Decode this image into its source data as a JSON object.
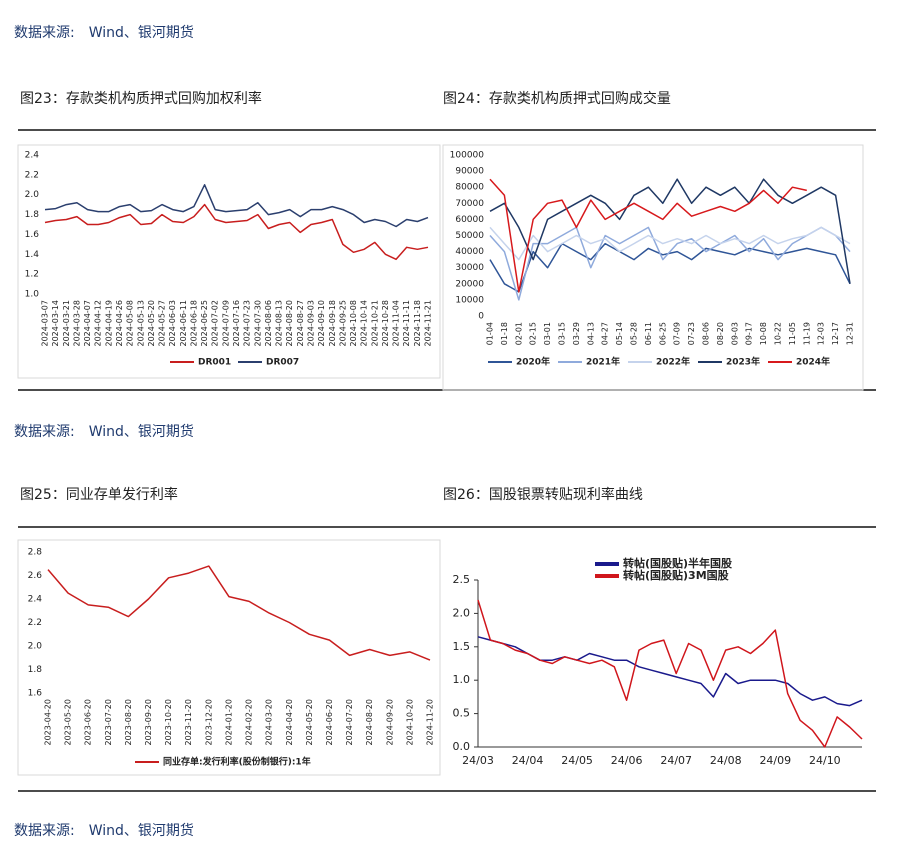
{
  "sources": [
    "数据来源:　Wind、银河期货",
    "数据来源:　Wind、银河期货",
    "数据来源:　Wind、银河期货"
  ],
  "chart_data": [
    {
      "type": "line",
      "title": "图23：存款类机构质押式回购加权利率",
      "categories": [
        "2024-03-07",
        "2024-03-14",
        "2024-03-21",
        "2024-03-28",
        "2024-04-07",
        "2024-04-12",
        "2024-04-19",
        "2024-04-26",
        "2024-05-08",
        "2024-05-13",
        "2024-05-20",
        "2024-05-27",
        "2024-06-03",
        "2024-06-11",
        "2024-06-18",
        "2024-06-25",
        "2024-07-02",
        "2024-07-09",
        "2024-07-16",
        "2024-07-23",
        "2024-07-30",
        "2024-08-06",
        "2024-08-13",
        "2024-08-20",
        "2024-08-27",
        "2024-09-03",
        "2024-09-10",
        "2024-09-18",
        "2024-09-25",
        "2024-10-08",
        "2024-10-14",
        "2024-10-21",
        "2024-10-28",
        "2024-11-04",
        "2024-11-11",
        "2024-11-18",
        "2024-11-21"
      ],
      "series": [
        {
          "name": "DR001",
          "color": "#c81e1e",
          "values": [
            1.72,
            1.74,
            1.75,
            1.78,
            1.7,
            1.7,
            1.72,
            1.77,
            1.8,
            1.7,
            1.71,
            1.8,
            1.73,
            1.72,
            1.78,
            1.9,
            1.75,
            1.72,
            1.73,
            1.74,
            1.8,
            1.66,
            1.7,
            1.72,
            1.62,
            1.7,
            1.72,
            1.75,
            1.5,
            1.42,
            1.45,
            1.52,
            1.4,
            1.35,
            1.47,
            1.45,
            1.47
          ]
        },
        {
          "name": "DR007",
          "color": "#2b3f6e",
          "values": [
            1.85,
            1.86,
            1.9,
            1.92,
            1.85,
            1.83,
            1.83,
            1.88,
            1.9,
            1.83,
            1.84,
            1.9,
            1.85,
            1.83,
            1.88,
            2.1,
            1.85,
            1.83,
            1.84,
            1.85,
            1.92,
            1.8,
            1.82,
            1.85,
            1.78,
            1.85,
            1.85,
            1.88,
            1.85,
            1.8,
            1.72,
            1.75,
            1.73,
            1.68,
            1.75,
            1.73,
            1.77
          ]
        }
      ],
      "ylim": [
        1.0,
        2.4
      ],
      "yticks": [
        {
          "value": 1,
          "label": "1.0"
        },
        1.2,
        1.4,
        1.6,
        1.8,
        {
          "value": 2,
          "label": "2.0"
        },
        2.2,
        2.4
      ],
      "legend": "bottom"
    },
    {
      "type": "line",
      "title": "图24：存款类机构质押式回购成交量",
      "categories": [
        "01-04",
        "01-18",
        "02-01",
        "02-15",
        "03-01",
        "03-15",
        "03-29",
        "04-13",
        "04-27",
        "05-14",
        "05-28",
        "06-11",
        "06-25",
        "07-09",
        "07-23",
        "08-06",
        "08-20",
        "09-03",
        "09-17",
        "10-08",
        "10-22",
        "11-05",
        "11-19",
        "12-03",
        "12-17",
        "12-31"
      ],
      "series": [
        {
          "name": "2020年",
          "color": "#2f5597",
          "values": [
            35000,
            20000,
            15000,
            40000,
            30000,
            45000,
            40000,
            35000,
            45000,
            40000,
            35000,
            42000,
            38000,
            40000,
            35000,
            42000,
            40000,
            38000,
            42000,
            40000,
            38000,
            40000,
            42000,
            40000,
            38000,
            20000
          ]
        },
        {
          "name": "2021年",
          "color": "#8faadc",
          "values": [
            50000,
            40000,
            10000,
            45000,
            45000,
            50000,
            55000,
            30000,
            50000,
            45000,
            50000,
            55000,
            35000,
            45000,
            48000,
            40000,
            45000,
            50000,
            40000,
            48000,
            35000,
            45000,
            50000,
            55000,
            50000,
            40000
          ]
        },
        {
          "name": "2022年",
          "color": "#c5d3ec",
          "values": [
            55000,
            45000,
            35000,
            50000,
            40000,
            45000,
            50000,
            45000,
            48000,
            40000,
            45000,
            50000,
            45000,
            48000,
            45000,
            50000,
            45000,
            48000,
            45000,
            50000,
            45000,
            48000,
            50000,
            55000,
            50000,
            45000
          ]
        },
        {
          "name": "2023年",
          "color": "#1f3864",
          "values": [
            65000,
            70000,
            55000,
            35000,
            60000,
            65000,
            70000,
            75000,
            70000,
            60000,
            75000,
            80000,
            70000,
            85000,
            70000,
            80000,
            75000,
            80000,
            70000,
            85000,
            75000,
            70000,
            75000,
            80000,
            75000,
            20000
          ]
        },
        {
          "name": "2024年",
          "color": "#d7191c",
          "values": [
            85000,
            75000,
            15000,
            60000,
            70000,
            72000,
            55000,
            72000,
            60000,
            65000,
            70000,
            65000,
            60000,
            70000,
            62000,
            65000,
            68000,
            65000,
            70000,
            78000,
            70000,
            80000,
            78000,
            null,
            null,
            null
          ]
        }
      ],
      "ylim": [
        0,
        100000
      ],
      "yticks": [
        0,
        10000,
        20000,
        30000,
        40000,
        50000,
        60000,
        70000,
        80000,
        90000,
        100000
      ],
      "legend": "bottom"
    },
    {
      "type": "line",
      "title": "图25：同业存单发行利率",
      "categories": [
        "2023-04-20",
        "2023-05-20",
        "2023-06-20",
        "2023-07-20",
        "2023-08-20",
        "2023-09-20",
        "2023-10-20",
        "2023-11-20",
        "2023-12-20",
        "2024-01-20",
        "2024-02-20",
        "2024-03-20",
        "2024-04-20",
        "2024-05-20",
        "2024-06-20",
        "2024-07-20",
        "2024-08-20",
        "2024-09-20",
        "2024-10-20",
        "2024-11-20"
      ],
      "series": [
        {
          "name": "同业存单:发行利率(股份制银行):1年",
          "color": "#c81e1e",
          "values": [
            2.65,
            2.45,
            2.35,
            2.33,
            2.25,
            2.4,
            2.58,
            2.62,
            2.68,
            2.42,
            2.38,
            2.28,
            2.2,
            2.1,
            2.05,
            1.92,
            1.97,
            1.92,
            1.95,
            1.88
          ]
        }
      ],
      "ylim": [
        1.6,
        2.8
      ],
      "yticks": [
        1.6,
        1.8,
        {
          "value": 2,
          "label": "2.0"
        },
        2.2,
        2.4,
        2.6,
        2.8
      ],
      "legend": "bottom"
    },
    {
      "type": "line",
      "title": "图26：国股银票转贴现利率曲线",
      "categories": [
        "24/03",
        null,
        null,
        null,
        "24/04",
        null,
        null,
        null,
        "24/05",
        null,
        null,
        null,
        "24/06",
        null,
        null,
        null,
        "24/07",
        null,
        null,
        null,
        "24/08",
        null,
        null,
        null,
        "24/09",
        null,
        null,
        null,
        "24/10",
        null,
        null,
        null
      ],
      "series": [
        {
          "name": "转帖(国股贴)半年国股",
          "color": "#1a1a8c",
          "values": [
            1.65,
            1.6,
            1.55,
            1.5,
            1.4,
            1.3,
            1.3,
            1.35,
            1.3,
            1.4,
            1.35,
            1.3,
            1.3,
            1.2,
            1.15,
            1.1,
            1.05,
            1.0,
            0.95,
            0.75,
            1.1,
            0.95,
            1.0,
            1.0,
            1.0,
            0.95,
            0.8,
            0.7,
            0.75,
            0.65,
            0.62,
            0.7
          ]
        },
        {
          "name": "转帖(国股贴)3M国股",
          "color": "#d0161c",
          "values": [
            2.2,
            1.6,
            1.55,
            1.45,
            1.4,
            1.3,
            1.25,
            1.35,
            1.3,
            1.25,
            1.3,
            1.2,
            0.7,
            1.45,
            1.55,
            1.6,
            1.1,
            1.55,
            1.45,
            1.0,
            1.45,
            1.5,
            1.4,
            1.55,
            1.75,
            0.8,
            0.4,
            0.25,
            0.0,
            0.45,
            0.3,
            0.12
          ]
        }
      ],
      "ylim": [
        0,
        2.5
      ],
      "yticks": [
        {
          "value": 0,
          "label": "0.0"
        },
        0.5,
        {
          "value": 1,
          "label": "1.0"
        },
        1.5,
        {
          "value": 2,
          "label": "2.0"
        },
        2.5
      ],
      "legend": "top"
    }
  ]
}
